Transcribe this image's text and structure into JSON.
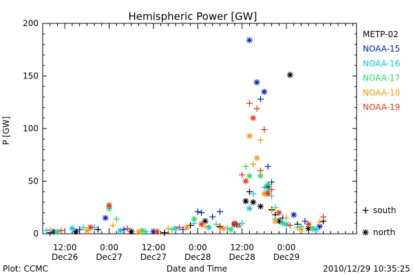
{
  "chart_data": {
    "type": "scatter",
    "title": "Hemispheric Power [GW]",
    "xlabel": "Date and Time",
    "ylabel": "P [GW]",
    "ylim": [
      0,
      200
    ],
    "yticks": [
      0,
      50,
      100,
      150,
      200
    ],
    "xlim": [
      0,
      85
    ],
    "xlim_note_hidden": "",
    "xticks": [
      {
        "x": 6,
        "line1": "12:00",
        "line2": "Dec26"
      },
      {
        "x": 18,
        "line1": "0:00",
        "line2": "Dec27"
      },
      {
        "x": 30,
        "line1": "12:00",
        "line2": "Dec27"
      },
      {
        "x": 42,
        "line1": "0:00",
        "line2": "Dec28"
      },
      {
        "x": 54,
        "line1": "12:00",
        "line2": "Dec28"
      },
      {
        "x": 66,
        "line1": "0:00",
        "line2": "Dec29"
      }
    ],
    "grid": false,
    "legend_position": "right",
    "series": [
      {
        "name": "METP-02",
        "color": "#000000",
        "points": [
          {
            "x": 2,
            "y": 1,
            "m": "+"
          },
          {
            "x": 9,
            "y": 2,
            "m": "*"
          },
          {
            "x": 15,
            "y": 4,
            "m": "+"
          },
          {
            "x": 24,
            "y": 2,
            "m": "*"
          },
          {
            "x": 33,
            "y": 1,
            "m": "+"
          },
          {
            "x": 40,
            "y": 8,
            "m": "+"
          },
          {
            "x": 44,
            "y": 12,
            "m": "*"
          },
          {
            "x": 48,
            "y": 7,
            "m": "+"
          },
          {
            "x": 52,
            "y": 9,
            "m": "*"
          },
          {
            "x": 55,
            "y": 31,
            "m": "*"
          },
          {
            "x": 56,
            "y": 40,
            "m": "+"
          },
          {
            "x": 57,
            "y": 30,
            "m": "*"
          },
          {
            "x": 59,
            "y": 26,
            "m": "*"
          },
          {
            "x": 61,
            "y": 45,
            "m": "*"
          },
          {
            "x": 62,
            "y": 23,
            "m": "+"
          },
          {
            "x": 63,
            "y": 18,
            "m": "+"
          },
          {
            "x": 64,
            "y": 12,
            "m": "*"
          },
          {
            "x": 67,
            "y": 151,
            "m": "*"
          },
          {
            "x": 69,
            "y": 9,
            "m": "+"
          },
          {
            "x": 72,
            "y": 5,
            "m": "*"
          },
          {
            "x": 76,
            "y": 12,
            "m": "+"
          }
        ]
      },
      {
        "name": "NOAA-15",
        "color": "#0022cc",
        "points": [
          {
            "x": 3,
            "y": 2,
            "m": "*"
          },
          {
            "x": 10,
            "y": 4,
            "m": "+"
          },
          {
            "x": 17,
            "y": 15,
            "m": "*"
          },
          {
            "x": 22,
            "y": 4,
            "m": "+"
          },
          {
            "x": 30,
            "y": 2,
            "m": "*"
          },
          {
            "x": 38,
            "y": 4,
            "m": "+"
          },
          {
            "x": 42,
            "y": 21,
            "m": "+"
          },
          {
            "x": 43,
            "y": 20,
            "m": "+"
          },
          {
            "x": 46,
            "y": 16,
            "m": "+"
          },
          {
            "x": 48,
            "y": 21,
            "m": "+"
          },
          {
            "x": 53,
            "y": 8,
            "m": "*"
          },
          {
            "x": 56,
            "y": 184,
            "m": "*"
          },
          {
            "x": 58,
            "y": 144,
            "m": "*"
          },
          {
            "x": 59,
            "y": 128,
            "m": "+"
          },
          {
            "x": 60,
            "y": 135,
            "m": "*"
          },
          {
            "x": 61,
            "y": 64,
            "m": "+"
          },
          {
            "x": 62,
            "y": 49,
            "m": "+"
          },
          {
            "x": 65,
            "y": 15,
            "m": "+"
          },
          {
            "x": 68,
            "y": 18,
            "m": "*"
          },
          {
            "x": 71,
            "y": 12,
            "m": "+"
          },
          {
            "x": 75,
            "y": 7,
            "m": "*"
          }
        ]
      },
      {
        "name": "NOAA-16",
        "color": "#00c8e8",
        "points": [
          {
            "x": 1,
            "y": 3,
            "m": "+"
          },
          {
            "x": 8,
            "y": 5,
            "m": "*"
          },
          {
            "x": 14,
            "y": 6,
            "m": "+"
          },
          {
            "x": 21,
            "y": 3,
            "m": "*"
          },
          {
            "x": 28,
            "y": 2,
            "m": "+"
          },
          {
            "x": 36,
            "y": 5,
            "m": "*"
          },
          {
            "x": 41,
            "y": 10,
            "m": "+"
          },
          {
            "x": 45,
            "y": 6,
            "m": "*"
          },
          {
            "x": 50,
            "y": 5,
            "m": "+"
          },
          {
            "x": 54,
            "y": 10,
            "m": "+"
          },
          {
            "x": 56,
            "y": 24,
            "m": "*"
          },
          {
            "x": 57,
            "y": 38,
            "m": "+"
          },
          {
            "x": 60,
            "y": 44,
            "m": "+"
          },
          {
            "x": 61,
            "y": 40,
            "m": "*"
          },
          {
            "x": 63,
            "y": 14,
            "m": "+"
          },
          {
            "x": 66,
            "y": 9,
            "m": "*"
          },
          {
            "x": 70,
            "y": 7,
            "m": "+"
          },
          {
            "x": 74,
            "y": 4,
            "m": "*"
          }
        ]
      },
      {
        "name": "NOAA-17",
        "color": "#22dd66",
        "points": [
          {
            "x": 4,
            "y": 2,
            "m": "*"
          },
          {
            "x": 11,
            "y": 6,
            "m": "+"
          },
          {
            "x": 18,
            "y": 24,
            "m": "*"
          },
          {
            "x": 20,
            "y": 14,
            "m": "+"
          },
          {
            "x": 27,
            "y": 3,
            "m": "*"
          },
          {
            "x": 35,
            "y": 4,
            "m": "+"
          },
          {
            "x": 41,
            "y": 14,
            "m": "*"
          },
          {
            "x": 47,
            "y": 9,
            "m": "+"
          },
          {
            "x": 51,
            "y": 4,
            "m": "*"
          },
          {
            "x": 55,
            "y": 64,
            "m": "+"
          },
          {
            "x": 56,
            "y": 55,
            "m": "*"
          },
          {
            "x": 57,
            "y": 66,
            "m": "+"
          },
          {
            "x": 59,
            "y": 55,
            "m": "*"
          },
          {
            "x": 61,
            "y": 47,
            "m": "*"
          },
          {
            "x": 62,
            "y": 36,
            "m": "+"
          },
          {
            "x": 63,
            "y": 25,
            "m": "+"
          },
          {
            "x": 65,
            "y": 10,
            "m": "*"
          },
          {
            "x": 69,
            "y": 6,
            "m": "+"
          },
          {
            "x": 73,
            "y": 5,
            "m": "*"
          }
        ]
      },
      {
        "name": "NOAA-18",
        "color": "#ff9900",
        "points": [
          {
            "x": 2,
            "y": 4,
            "m": "+"
          },
          {
            "x": 12,
            "y": 3,
            "m": "*"
          },
          {
            "x": 19,
            "y": 8,
            "m": "+"
          },
          {
            "x": 26,
            "y": 2,
            "m": "*"
          },
          {
            "x": 34,
            "y": 5,
            "m": "+"
          },
          {
            "x": 39,
            "y": 6,
            "m": "*"
          },
          {
            "x": 44,
            "y": 7,
            "m": "+"
          },
          {
            "x": 49,
            "y": 5,
            "m": "*"
          },
          {
            "x": 53,
            "y": 8,
            "m": "+"
          },
          {
            "x": 56,
            "y": 93,
            "m": "*"
          },
          {
            "x": 57,
            "y": 66,
            "m": "+"
          },
          {
            "x": 58,
            "y": 72,
            "m": "*"
          },
          {
            "x": 59,
            "y": 89,
            "m": "+"
          },
          {
            "x": 60,
            "y": 38,
            "m": "*"
          },
          {
            "x": 62,
            "y": 22,
            "m": "+"
          },
          {
            "x": 63,
            "y": 12,
            "m": "*"
          },
          {
            "x": 66,
            "y": 15,
            "m": "+"
          },
          {
            "x": 70,
            "y": 4,
            "m": "*"
          },
          {
            "x": 75,
            "y": 11,
            "m": "+"
          }
        ]
      },
      {
        "name": "NOAA-19",
        "color": "#ee3311",
        "points": [
          {
            "x": 5,
            "y": 3,
            "m": "+"
          },
          {
            "x": 13,
            "y": 6,
            "m": "*"
          },
          {
            "x": 18,
            "y": 27,
            "m": "*"
          },
          {
            "x": 23,
            "y": 5,
            "m": "+"
          },
          {
            "x": 31,
            "y": 2,
            "m": "*"
          },
          {
            "x": 37,
            "y": 6,
            "m": "+"
          },
          {
            "x": 43,
            "y": 9,
            "m": "*"
          },
          {
            "x": 48,
            "y": 6,
            "m": "+"
          },
          {
            "x": 52,
            "y": 10,
            "m": "*"
          },
          {
            "x": 54,
            "y": 56,
            "m": "+"
          },
          {
            "x": 55,
            "y": 50,
            "m": "*"
          },
          {
            "x": 56,
            "y": 124,
            "m": "+"
          },
          {
            "x": 57,
            "y": 110,
            "m": "*"
          },
          {
            "x": 58,
            "y": 119,
            "m": "+"
          },
          {
            "x": 59,
            "y": 60,
            "m": "+"
          },
          {
            "x": 60,
            "y": 99,
            "m": "+"
          },
          {
            "x": 61,
            "y": 38,
            "m": "*"
          },
          {
            "x": 62,
            "y": 42,
            "m": "+"
          },
          {
            "x": 64,
            "y": 20,
            "m": "*"
          },
          {
            "x": 67,
            "y": 8,
            "m": "+"
          },
          {
            "x": 72,
            "y": 9,
            "m": "*"
          },
          {
            "x": 76,
            "y": 16,
            "m": "+"
          }
        ]
      }
    ],
    "marker_legend": [
      {
        "marker": "+",
        "label": "south"
      },
      {
        "marker": "*",
        "label": "north"
      }
    ]
  },
  "footer": {
    "left": "Plot: CCMC",
    "right": "2010/12/29 10:35:25"
  }
}
